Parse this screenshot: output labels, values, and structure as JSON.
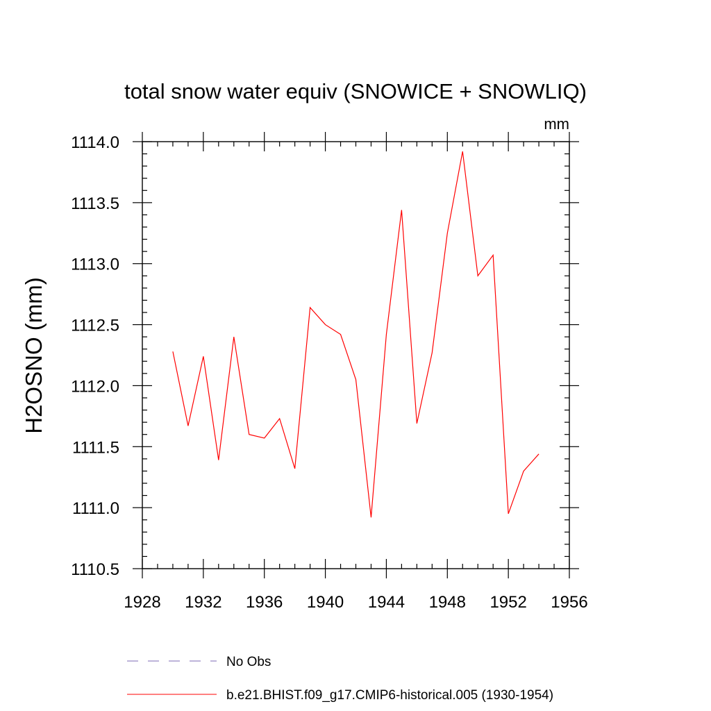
{
  "chart_data": {
    "type": "line",
    "title": "total snow water equiv (SNOWICE + SNOWLIQ)",
    "units": "mm",
    "ylabel": "H2OSNO  (mm)",
    "xlabel": "",
    "xlim": [
      1928,
      1956
    ],
    "ylim": [
      1110.5,
      1114.0
    ],
    "x_ticks": [
      1928,
      1932,
      1936,
      1940,
      1944,
      1948,
      1952,
      1956
    ],
    "x_tick_labels": [
      "1928",
      "1932",
      "1936",
      "1940",
      "1944",
      "1948",
      "1952",
      "1956"
    ],
    "y_ticks": [
      1110.5,
      1111.0,
      1111.5,
      1112.0,
      1112.5,
      1113.0,
      1113.5,
      1114.0
    ],
    "y_tick_labels": [
      "1110.5",
      "1111.0",
      "1111.5",
      "1112.0",
      "1112.5",
      "1113.0",
      "1113.5",
      "1114.0"
    ],
    "grid": false,
    "legend_position": "bottom",
    "series": [
      {
        "name": "b.e21.BHIST.f09_g17.CMIP6-historical.005 (1930-1954)",
        "color": "#ff0000",
        "x": [
          1930,
          1931,
          1932,
          1933,
          1934,
          1935,
          1936,
          1937,
          1938,
          1939,
          1940,
          1941,
          1942,
          1943,
          1944,
          1945,
          1946,
          1947,
          1948,
          1949,
          1950,
          1951,
          1952,
          1953,
          1954
        ],
        "y": [
          1112.28,
          1111.67,
          1112.24,
          1111.39,
          1112.4,
          1111.6,
          1111.57,
          1111.73,
          1111.32,
          1112.64,
          1112.5,
          1112.42,
          1112.05,
          1110.92,
          1112.42,
          1113.44,
          1111.69,
          1112.27,
          1113.25,
          1113.92,
          1112.9,
          1113.07,
          1110.95,
          1111.3,
          1111.44
        ]
      }
    ],
    "legend": [
      {
        "label": "No Obs",
        "color": "#7b68b5",
        "style": "dashed"
      },
      {
        "label": "b.e21.BHIST.f09_g17.CMIP6-historical.005 (1930-1954)",
        "color": "#ff0000",
        "style": "solid"
      }
    ]
  }
}
